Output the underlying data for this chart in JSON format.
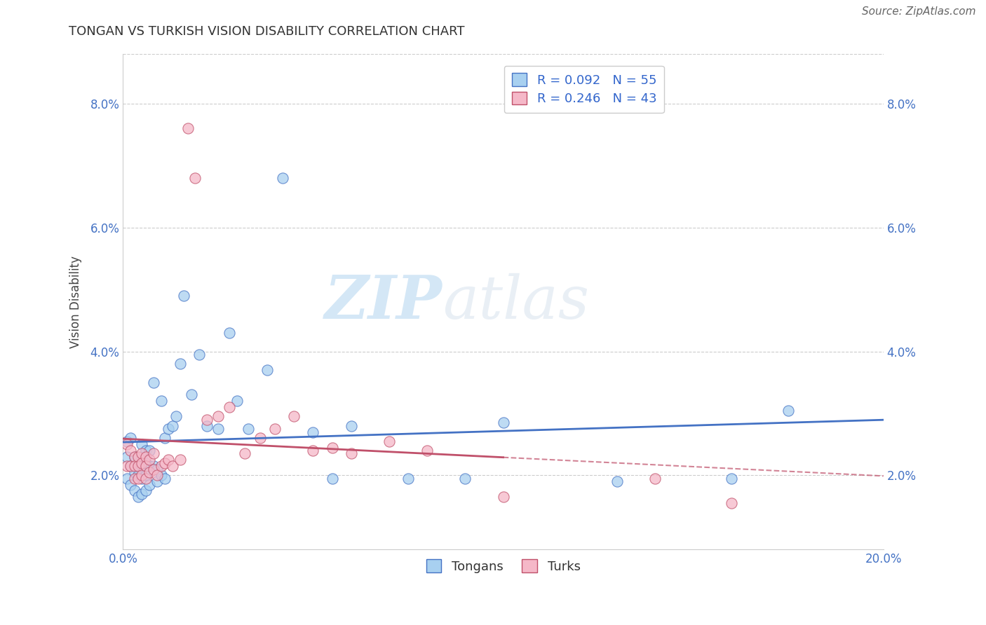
{
  "title": "TONGAN VS TURKISH VISION DISABILITY CORRELATION CHART",
  "source": "Source: ZipAtlas.com",
  "ylabel": "Vision Disability",
  "xlim": [
    0.0,
    0.2
  ],
  "ylim": [
    0.008,
    0.088
  ],
  "yticks": [
    0.02,
    0.04,
    0.06,
    0.08
  ],
  "ytick_labels": [
    "2.0%",
    "4.0%",
    "6.0%",
    "8.0%"
  ],
  "legend_r1": "R = 0.092   N = 55",
  "legend_r2": "R = 0.246   N = 43",
  "color_tongan": "#A8D0F0",
  "color_turkish": "#F5B8C8",
  "color_line_tongan": "#4472C4",
  "color_line_turkish": "#C0506A",
  "background_color": "#FFFFFF",
  "tongan_x": [
    0.001,
    0.001,
    0.001,
    0.002,
    0.002,
    0.002,
    0.003,
    0.003,
    0.003,
    0.004,
    0.004,
    0.004,
    0.005,
    0.005,
    0.005,
    0.005,
    0.005,
    0.006,
    0.006,
    0.006,
    0.006,
    0.007,
    0.007,
    0.007,
    0.008,
    0.008,
    0.009,
    0.009,
    0.01,
    0.01,
    0.011,
    0.011,
    0.012,
    0.013,
    0.014,
    0.015,
    0.016,
    0.018,
    0.02,
    0.022,
    0.025,
    0.028,
    0.03,
    0.033,
    0.038,
    0.042,
    0.05,
    0.055,
    0.06,
    0.075,
    0.09,
    0.1,
    0.13,
    0.16,
    0.175
  ],
  "tongan_y": [
    0.0255,
    0.023,
    0.0195,
    0.0215,
    0.026,
    0.0185,
    0.023,
    0.0205,
    0.0175,
    0.022,
    0.02,
    0.0165,
    0.025,
    0.023,
    0.0215,
    0.0195,
    0.017,
    0.024,
    0.022,
    0.02,
    0.0175,
    0.024,
    0.0215,
    0.0185,
    0.035,
    0.0215,
    0.021,
    0.019,
    0.032,
    0.02,
    0.026,
    0.0195,
    0.0275,
    0.028,
    0.0295,
    0.038,
    0.049,
    0.033,
    0.0395,
    0.028,
    0.0275,
    0.043,
    0.032,
    0.0275,
    0.037,
    0.068,
    0.027,
    0.0195,
    0.028,
    0.0195,
    0.0195,
    0.0285,
    0.019,
    0.0195,
    0.0305
  ],
  "turkish_x": [
    0.001,
    0.001,
    0.002,
    0.002,
    0.003,
    0.003,
    0.003,
    0.004,
    0.004,
    0.004,
    0.005,
    0.005,
    0.005,
    0.006,
    0.006,
    0.006,
    0.007,
    0.007,
    0.008,
    0.008,
    0.009,
    0.01,
    0.011,
    0.012,
    0.013,
    0.015,
    0.017,
    0.019,
    0.022,
    0.025,
    0.028,
    0.032,
    0.036,
    0.04,
    0.045,
    0.05,
    0.055,
    0.06,
    0.07,
    0.08,
    0.1,
    0.14,
    0.16
  ],
  "turkish_y": [
    0.025,
    0.0215,
    0.024,
    0.0215,
    0.023,
    0.0215,
    0.0195,
    0.023,
    0.0215,
    0.0195,
    0.0235,
    0.022,
    0.02,
    0.023,
    0.0215,
    0.0195,
    0.0225,
    0.0205,
    0.0235,
    0.021,
    0.02,
    0.0215,
    0.022,
    0.0225,
    0.0215,
    0.0225,
    0.076,
    0.068,
    0.029,
    0.0295,
    0.031,
    0.0235,
    0.026,
    0.0275,
    0.0295,
    0.024,
    0.0245,
    0.0235,
    0.0255,
    0.024,
    0.0165,
    0.0195,
    0.0155
  ]
}
